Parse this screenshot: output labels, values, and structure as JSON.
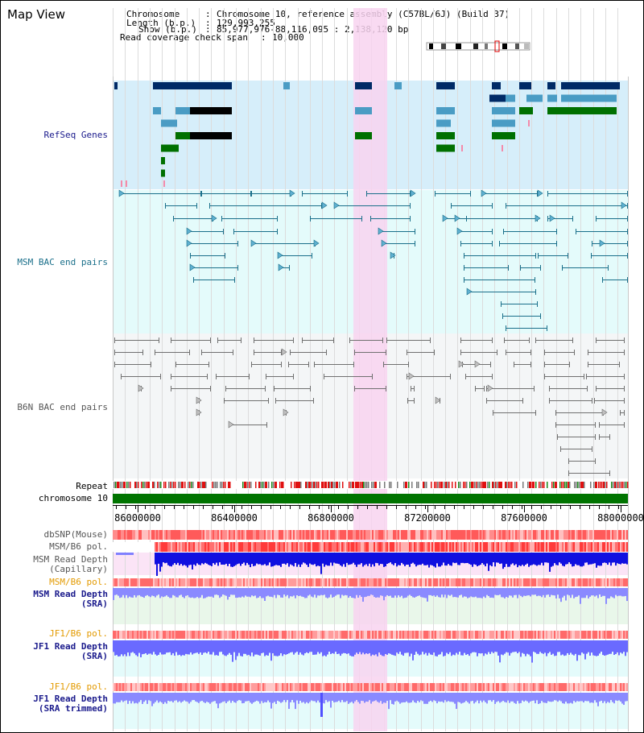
{
  "title": "Map View",
  "header": {
    "chromosome_key": "Chromosome",
    "chromosome_val": "Chromosome 10, reference assembly (C57BL/6J) (Build 37)",
    "length_key": "Length (b.p.)",
    "length_val": "129,993,255",
    "show_key": "Show (b.p.)",
    "show_val": "85,977,976-88,116,095 : 2,138,120 bp",
    "span_key": "Read coverage check span",
    "span_val": "10,000"
  },
  "tracks": {
    "refseq": "RefSeq Genes",
    "msm_bac": "MSM BAC end pairs",
    "b6n_bac": "B6N BAC end pairs",
    "repeat": "Repeat",
    "chromosome": "chromosome 10",
    "dbsnp": "dbSNP(Mouse)",
    "msm_b6_pol": "MSM/B6 pol.",
    "msm_read_depth_cap_1": "MSM Read Depth",
    "msm_read_depth_cap_2": "(Capillary)",
    "msm_b6_pol_2": "MSM/B6 pol.",
    "msm_read_depth_sra_1": "MSM Read Depth",
    "msm_read_depth_sra_2": "(SRA)",
    "jf1_b6_pol": "JF1/B6 pol.",
    "jf1_read_depth_sra_1": "JF1 Read Depth",
    "jf1_read_depth_sra_2": "(SRA)",
    "jf1_b6_pol_2": "JF1/B6 pol.",
    "jf1_read_depth_trim_1": "JF1 Read Depth",
    "jf1_read_depth_trim_2": "(SRA trimmed)"
  },
  "axis": {
    "ticks": [
      "86000000",
      "86400000",
      "86800000",
      "87200000",
      "87600000",
      "88000000"
    ]
  },
  "colors": {
    "refseq_bg": "#d6eefa",
    "msm_bg": "#e4fbfb",
    "b6n_bg": "#f4f6f7",
    "highlight": "#f8d4f0",
    "refseq_dark": "#002a66",
    "refseq_mid": "#4a9cc4",
    "refseq_green": "#007000",
    "msm_line": "#1a6f8a",
    "b6n_line": "#707070",
    "label_navy": "#1a1a8c",
    "label_teal": "#1a6f8a",
    "label_gray": "#555555",
    "label_orange": "#e39a00"
  }
}
